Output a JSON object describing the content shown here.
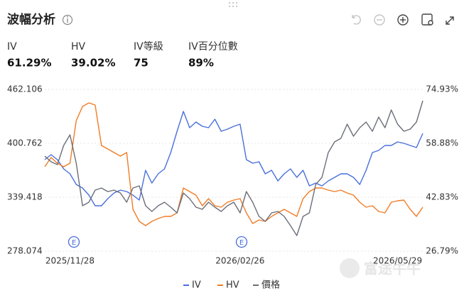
{
  "header": {
    "title": "波幅分析"
  },
  "stats": [
    {
      "label": "IV",
      "value": "61.29%"
    },
    {
      "label": "HV",
      "value": "39.02%"
    },
    {
      "label": "IV等級",
      "value": "75"
    },
    {
      "label": "IV百分位數",
      "value": "89%"
    }
  ],
  "events": [
    "E",
    "E"
  ],
  "watermark": "富途牛牛",
  "chart_data": {
    "type": "line",
    "categories": [
      null,
      null,
      null,
      null,
      "2025/11/28",
      null,
      null,
      null,
      null,
      null,
      null,
      null,
      null,
      null,
      null,
      null,
      null,
      null,
      null,
      null,
      null,
      null,
      null,
      null,
      null,
      null,
      null,
      null,
      null,
      null,
      null,
      "2026/02/26",
      null,
      null,
      null,
      null,
      null,
      null,
      null,
      null,
      null,
      null,
      null,
      null,
      null,
      null,
      null,
      null,
      null,
      null,
      null,
      null,
      null,
      null,
      null,
      null,
      "2026/05/29",
      null,
      null,
      null,
      null
    ],
    "series": [
      {
        "name": "IV",
        "color": "#4a6fdc",
        "axis": "y2",
        "values": [
          54.03,
          55.51,
          54.03,
          51.28,
          49.8,
          46.64,
          45.58,
          43.47,
          40.3,
          40.3,
          42.41,
          44.1,
          44.95,
          44.53,
          43.47,
          41.99,
          50.86,
          47.06,
          49.8,
          51.28,
          56.14,
          62.47,
          68.38,
          63.53,
          65.22,
          63.95,
          63.53,
          66.06,
          62.47,
          63.11,
          63.95,
          64.58,
          54.03,
          52.97,
          53.39,
          49.8,
          50.86,
          47.69,
          49.8,
          51.28,
          48.75,
          50.86,
          46.21,
          47.06,
          46.21,
          47.69,
          48.75,
          49.8,
          49.8,
          48.75,
          46.64,
          50.86,
          56.14,
          56.77,
          58.25,
          58.25,
          59.31,
          58.88,
          58.25,
          57.62,
          61.84
        ]
      },
      {
        "name": "HV",
        "color": "#f07c26",
        "axis": "y2",
        "values": [
          51.92,
          54.66,
          52.97,
          51.92,
          52.97,
          65.64,
          69.86,
          70.92,
          70.28,
          58.25,
          57.19,
          56.14,
          55.08,
          56.14,
          39.25,
          35.66,
          34.39,
          35.66,
          36.5,
          37.14,
          37.14,
          38.19,
          45.58,
          44.53,
          43.47,
          40.3,
          42.41,
          40.3,
          39.88,
          41.36,
          41.99,
          42.41,
          38.19,
          35.02,
          36.08,
          35.66,
          37.14,
          38.19,
          39.25,
          38.19,
          37.14,
          42.41,
          44.53,
          45.58,
          45.58,
          44.95,
          44.53,
          44.95,
          44.1,
          43.47,
          41.36,
          39.88,
          40.3,
          38.61,
          38.19,
          41.36,
          41.78,
          41.99,
          39.25,
          37.14,
          39.88
        ]
      },
      {
        "name": "價格",
        "color": "#6b6e78",
        "axis": "y",
        "values": [
          386.23,
          379.78,
          376.55,
          398.34,
          410.45,
          378.16,
          329.73,
          333.77,
          347.49,
          349.91,
          345.87,
          347.49,
          344.26,
          333.77,
          349.91,
          352.33,
          329.73,
          323.27,
          329.73,
          333.77,
          328.12,
          321.66,
          344.26,
          337.8,
          328.12,
          325.69,
          333.77,
          328.12,
          323.27,
          329.73,
          333.77,
          321.66,
          345.87,
          333.77,
          317.62,
          311.97,
          321.66,
          323.27,
          317.62,
          307.13,
          295.83,
          317.62,
          321.66,
          353.95,
          362.02,
          390.27,
          402.38,
          406.41,
          422.55,
          408.83,
          418.52,
          424.98,
          414.48,
          430.63,
          418.52,
          438.7,
          422.55,
          414.48,
          416.9,
          424.98,
          449.19
        ]
      }
    ],
    "ylim": [
      278.074,
      462.106
    ],
    "yticks": [
      278.074,
      339.418,
      400.762,
      462.106
    ],
    "y2lim": [
      26.79,
      74.93
    ],
    "y2ticks": [
      {
        "value": 26.79,
        "label": "26.79%"
      },
      {
        "value": 42.83,
        "label": "42.83%"
      },
      {
        "value": 58.88,
        "label": "58.88%"
      },
      {
        "value": 74.93,
        "label": "74.93%"
      }
    ],
    "grid": true
  }
}
